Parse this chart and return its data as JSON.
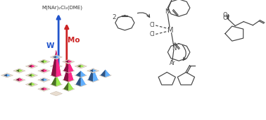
{
  "background_color": "#ffffff",
  "blue_color": "#5599ee",
  "green_color": "#88cc44",
  "pink_color": "#ee2277",
  "floor_color1": "#e8ddd0",
  "floor_color2": "#b8a898",
  "arrow_blue": {
    "label": "W",
    "color": "#2255cc"
  },
  "arrow_red": {
    "label": "Mo",
    "color": "#cc2222"
  },
  "annotation_text": "M(NAr)₂Cl₂(DME)",
  "line_color": "#444444",
  "line_lw": 0.85
}
